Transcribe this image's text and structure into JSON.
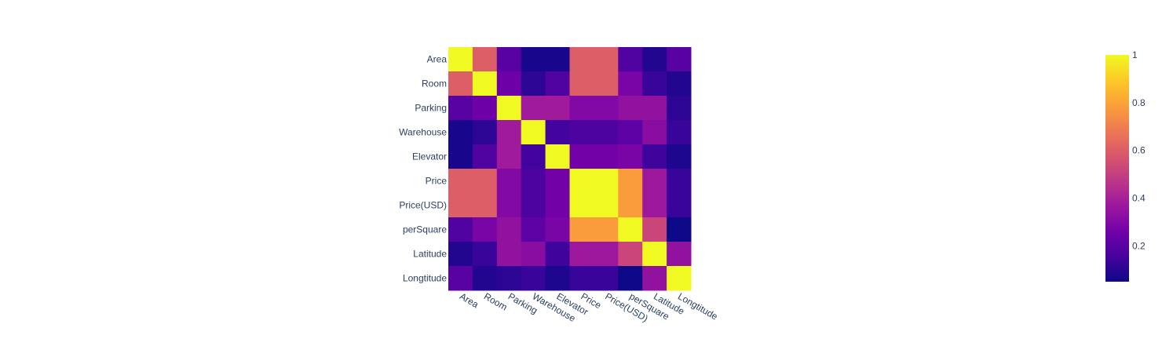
{
  "chart_data": {
    "type": "heatmap",
    "title": "",
    "xlabel": "",
    "ylabel": "",
    "categories": [
      "Area",
      "Room",
      "Parking",
      "Warehouse",
      "Elevator",
      "Price",
      "Price(USD)",
      "perSquare",
      "Latitude",
      "Longtitude"
    ],
    "z": [
      [
        1.0,
        0.6,
        0.2,
        0.07,
        0.07,
        0.6,
        0.6,
        0.18,
        0.09,
        0.2
      ],
      [
        0.6,
        1.0,
        0.25,
        0.11,
        0.18,
        0.6,
        0.6,
        0.28,
        0.13,
        0.09
      ],
      [
        0.2,
        0.25,
        1.0,
        0.38,
        0.38,
        0.3,
        0.3,
        0.34,
        0.34,
        0.11
      ],
      [
        0.07,
        0.11,
        0.38,
        1.0,
        0.15,
        0.17,
        0.17,
        0.21,
        0.32,
        0.13
      ],
      [
        0.07,
        0.18,
        0.38,
        0.15,
        1.0,
        0.26,
        0.26,
        0.28,
        0.14,
        0.08
      ],
      [
        0.6,
        0.6,
        0.3,
        0.17,
        0.26,
        1.0,
        1.0,
        0.78,
        0.37,
        0.13
      ],
      [
        0.6,
        0.6,
        0.3,
        0.17,
        0.26,
        1.0,
        1.0,
        0.78,
        0.37,
        0.13
      ],
      [
        0.18,
        0.28,
        0.34,
        0.21,
        0.28,
        0.78,
        0.78,
        1.0,
        0.52,
        0.05
      ],
      [
        0.09,
        0.13,
        0.34,
        0.32,
        0.14,
        0.37,
        0.37,
        0.52,
        1.0,
        0.34
      ],
      [
        0.2,
        0.09,
        0.11,
        0.13,
        0.08,
        0.13,
        0.13,
        0.05,
        0.34,
        1.0
      ]
    ],
    "zmin": 0.05,
    "zmax": 1.0,
    "colorscale": "plasma",
    "colorbar": {
      "tickvals": [
        0.2,
        0.4,
        0.6,
        0.8,
        1
      ],
      "ticktext": [
        "0.2",
        "0.4",
        "0.6",
        "0.8",
        "1"
      ]
    },
    "grid": false,
    "x_tick_angle_deg": 30
  }
}
